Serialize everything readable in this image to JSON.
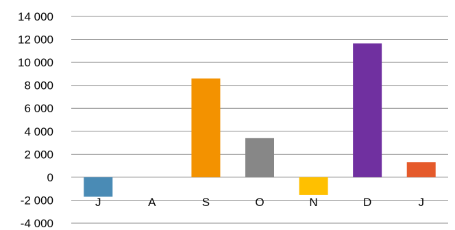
{
  "chart_data": {
    "type": "bar",
    "title": "",
    "xlabel": "",
    "ylabel": "",
    "categories": [
      "J",
      "A",
      "S",
      "O",
      "N",
      "D",
      "J"
    ],
    "values": [
      -1700,
      0,
      8600,
      3400,
      -1550,
      11650,
      1300
    ],
    "colors": [
      "#4a8bb5",
      "#4a8bb5",
      "#f39200",
      "#878787",
      "#ffc000",
      "#7030a0",
      "#e55a2b"
    ],
    "ylim": [
      -4000,
      14000
    ],
    "yticks": [
      14000,
      12000,
      10000,
      8000,
      6000,
      4000,
      2000,
      0,
      -2000,
      -4000
    ],
    "ytick_labels": [
      "14 000",
      "12 000",
      "10 000",
      "8 000",
      "6 000",
      "4 000",
      "2 000",
      "0",
      "-2 000",
      "-4 000"
    ],
    "grid": true,
    "legend": "none"
  }
}
